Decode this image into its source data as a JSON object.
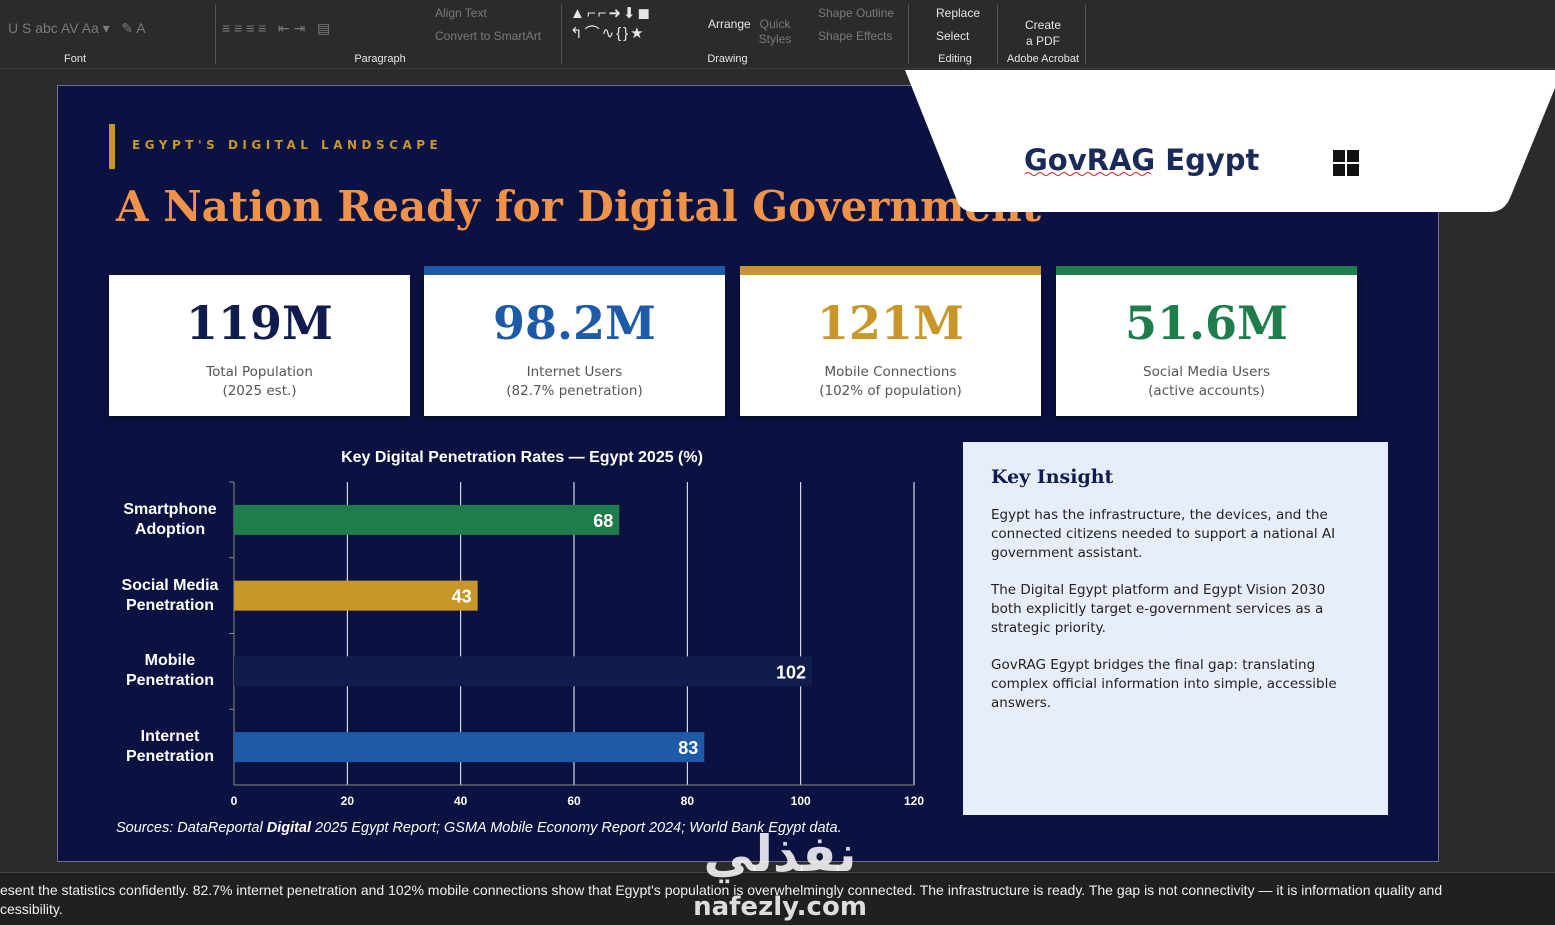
{
  "ribbon": {
    "groups": [
      "Font",
      "Paragraph",
      "Drawing",
      "Editing",
      "Adobe Acrobat"
    ],
    "align_text": "Align Text",
    "convert_smartart": "Convert to SmartArt",
    "arrange": "Arrange",
    "quick_styles": "Quick Styles",
    "shape_outline": "Shape Outline",
    "shape_effects": "Shape Effects",
    "replace": "Replace",
    "select": "Select",
    "create_pdf": "Create a PDF"
  },
  "overlay": {
    "title": "GovRAG Egypt"
  },
  "slide": {
    "eyebrow": "EGYPT'S DIGITAL LANDSCAPE",
    "title": "A Nation Ready for Digital Government",
    "stats": [
      {
        "value": "119M",
        "line1": "Total Population",
        "line2": "(2025 est.)",
        "color": "#0f1c4d",
        "accent": "#0b1140"
      },
      {
        "value": "98.2M",
        "line1": "Internet Users",
        "line2": "(82.7% penetration)",
        "color": "#1f5aa6",
        "accent": "#1f5aa6"
      },
      {
        "value": "121M",
        "line1": "Mobile Connections",
        "line2": "(102% of population)",
        "color": "#c9962a",
        "accent": "#c9962a"
      },
      {
        "value": "51.6M",
        "line1": "Social Media Users",
        "line2": "(active accounts)",
        "color": "#1e7d4a",
        "accent": "#1e7d4a"
      }
    ],
    "chart": {
      "type": "bar",
      "title": "Key Digital Penetration Rates — Egypt 2025 (%)",
      "categories": [
        "Smartphone Adoption",
        "Social Media Penetration",
        "Mobile Penetration",
        "Internet Penetration"
      ],
      "values": [
        68,
        43,
        102,
        83
      ],
      "colors": [
        "#1e7d4a",
        "#c9962a",
        "#0f1c4d",
        "#1f5aa6"
      ],
      "xlim": [
        0,
        120
      ],
      "xticks": [
        0,
        20,
        40,
        60,
        80,
        100,
        120
      ],
      "grid": true
    },
    "insight": {
      "title": "Key Insight",
      "paragraphs": [
        "Egypt has the infrastructure, the devices, and the connected citizens needed to support a national AI government assistant.",
        "The Digital Egypt platform and Egypt Vision 2030 both explicitly target e-government services as a strategic priority.",
        "GovRAG Egypt bridges the final gap: translating complex official information into simple, accessible answers."
      ]
    },
    "sources": [
      "Sources: DataReportal ",
      "Digital",
      " 2025 Egypt Report; GSMA Mobile Economy Report 2024; World Bank Egypt data."
    ]
  },
  "notes": [
    "esent the statistics confidently. 82.7% internet penetration and 102% mobile connections show that Egypt's population is overwhelmingly connected. The infrastructure is ready. The gap is not connectivity — it is information quality and",
    "cessibility."
  ],
  "watermark": [
    "نفذلي",
    "nafezly.com"
  ]
}
